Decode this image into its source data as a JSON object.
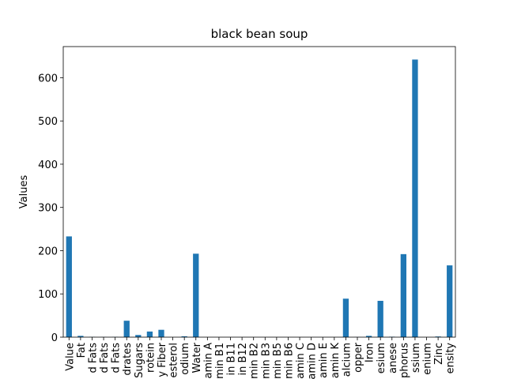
{
  "chart_data": {
    "type": "bar",
    "title": "black bean soup",
    "y_label": "Values",
    "categories": [
      "Value",
      "Fat",
      "d Fats",
      "d Fats",
      "d Fats",
      "drates",
      "Sugars",
      "rotein",
      "y Fiber",
      "esterol",
      "odium",
      "Water",
      "amin A",
      "min B1",
      "in B11",
      "in B12",
      "min B2",
      "min B3",
      "min B5",
      "min B6",
      "amin C",
      "amin D",
      "amin E",
      "amin K",
      "alcium",
      "opper",
      "Iron",
      "esium",
      "anese",
      "phorus",
      "ssium",
      "enium",
      "Zinc",
      "ensity"
    ],
    "values": [
      233,
      3,
      0.5,
      0.3,
      0.5,
      38,
      5,
      13,
      17,
      0,
      2,
      193,
      0,
      0,
      0,
      0,
      0,
      0,
      0,
      0,
      0,
      0,
      0,
      0,
      89,
      0.3,
      3,
      84,
      1,
      192,
      642,
      0,
      1.5,
      166
    ],
    "color": "#1f77b4",
    "ylim": [
      0,
      672
    ],
    "yticks": [
      0,
      100,
      200,
      300,
      400,
      500,
      600
    ],
    "grid": false
  }
}
